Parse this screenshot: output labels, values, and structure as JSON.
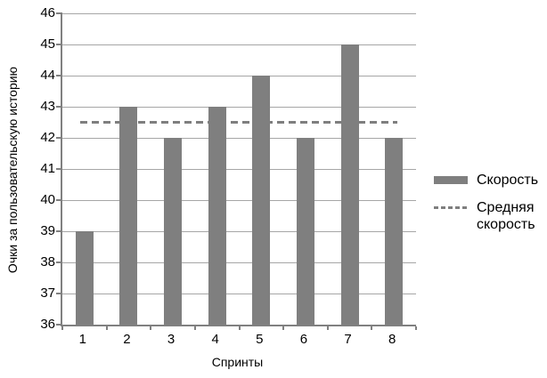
{
  "chart_data": {
    "type": "bar",
    "title": "",
    "xlabel": "Спринты",
    "ylabel": "Очки за пользовательскую историю",
    "categories": [
      "1",
      "2",
      "3",
      "4",
      "5",
      "6",
      "7",
      "8"
    ],
    "series": [
      {
        "name": "Скорость",
        "type": "bar",
        "values": [
          39,
          43,
          42,
          43,
          44,
          42,
          45,
          42
        ],
        "color": "#7f7f7f"
      },
      {
        "name": "Средняя скорость",
        "type": "reference-line",
        "value": 42.5,
        "style": "dashed",
        "color": "#7f7f7f"
      }
    ],
    "ylim": [
      36,
      46
    ],
    "yticks": [
      36,
      37,
      38,
      39,
      40,
      41,
      42,
      43,
      44,
      45,
      46
    ],
    "grid": "horizontal",
    "gridline_color": "#a6a6a6",
    "axis_color": "#808080",
    "text_color": "#000000",
    "background_color": "#ffffff",
    "legend_position": "right"
  }
}
